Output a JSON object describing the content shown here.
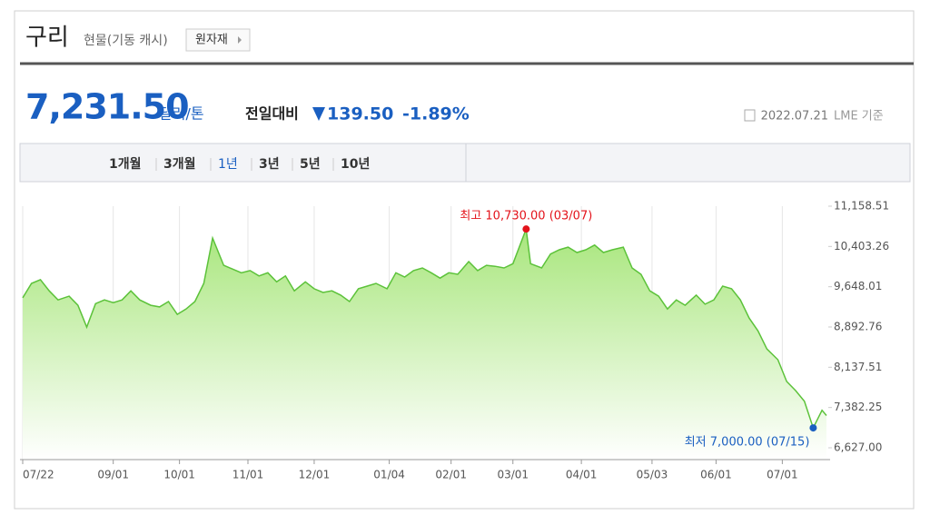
{
  "header": {
    "title": "구리",
    "subtitle": "현물(기동 캐시)",
    "button": "원자재"
  },
  "quote": {
    "price": "7,231.50",
    "unit": "달러/톤",
    "change_label": "전일대비",
    "change": "139.50",
    "change_pct": "-1.89%",
    "date": "2022.07.21",
    "source": "LME 기준"
  },
  "tabs": {
    "items": [
      "1개월",
      "3개월",
      "1년",
      "3년",
      "5년",
      "10년"
    ],
    "selected": 2
  },
  "chart_data": {
    "type": "area",
    "x": [
      0,
      4,
      8,
      12,
      16,
      21,
      25,
      29,
      33,
      37,
      41,
      45,
      49,
      53,
      58,
      62,
      66,
      70,
      74,
      78,
      82,
      86,
      91,
      95,
      99,
      103,
      107,
      111,
      115,
      119,
      123,
      128,
      132,
      136,
      140,
      144,
      148,
      152,
      156,
      160,
      165,
      169,
      173,
      177,
      181,
      185,
      189,
      193,
      197,
      202,
      206,
      210,
      214,
      218,
      222,
      228,
      230,
      235,
      239,
      243,
      247,
      251,
      255,
      259,
      263,
      267,
      272,
      276,
      280,
      284,
      288,
      292,
      296,
      300,
      305,
      309,
      313,
      317,
      321,
      325,
      329,
      333,
      337,
      342,
      346,
      350,
      354,
      358,
      362,
      364
    ],
    "values": [
      9440,
      9710,
      9780,
      9570,
      9400,
      9470,
      9300,
      8890,
      9330,
      9400,
      9350,
      9400,
      9570,
      9400,
      9300,
      9270,
      9370,
      9130,
      9230,
      9370,
      9710,
      10560,
      10050,
      9980,
      9910,
      9950,
      9850,
      9910,
      9740,
      9850,
      9570,
      9740,
      9610,
      9540,
      9570,
      9490,
      9370,
      9610,
      9660,
      9710,
      9610,
      9910,
      9830,
      9950,
      10000,
      9910,
      9810,
      9910,
      9880,
      10120,
      9950,
      10050,
      10030,
      10000,
      10080,
      10730,
      10080,
      10000,
      10260,
      10340,
      10390,
      10290,
      10340,
      10430,
      10290,
      10340,
      10390,
      10000,
      9880,
      9570,
      9470,
      9230,
      9400,
      9300,
      9490,
      9320,
      9400,
      9660,
      9610,
      9400,
      9060,
      8820,
      8480,
      8280,
      7870,
      7700,
      7500,
      7000,
      7330,
      7231.5
    ],
    "line_color": "#5cc23a",
    "fill_color": "#a8e67c",
    "xlim": [
      0,
      364
    ],
    "xticks": [
      {
        "value": 0,
        "label": "07/22"
      },
      {
        "value": 41,
        "label": "09/01"
      },
      {
        "value": 71,
        "label": "10/01"
      },
      {
        "value": 102,
        "label": "11/01"
      },
      {
        "value": 132,
        "label": "12/01"
      },
      {
        "value": 166,
        "label": "01/04"
      },
      {
        "value": 194,
        "label": "02/01"
      },
      {
        "value": 222,
        "label": "03/01"
      },
      {
        "value": 253,
        "label": "04/01"
      },
      {
        "value": 285,
        "label": "05/03"
      },
      {
        "value": 314,
        "label": "06/01"
      },
      {
        "value": 344,
        "label": "07/01"
      }
    ],
    "ylim": [
      6627,
      11158.51
    ],
    "yticks": [
      {
        "value": 11158.51,
        "label": "11,158.51"
      },
      {
        "value": 10403.26,
        "label": "10,403.26"
      },
      {
        "value": 9648.01,
        "label": "9,648.01"
      },
      {
        "value": 8892.76,
        "label": "8,892.76"
      },
      {
        "value": 8137.51,
        "label": "8,137.51"
      },
      {
        "value": 7382.25,
        "label": "7,382.25"
      },
      {
        "value": 6627,
        "label": "6,627.00"
      }
    ],
    "annotations": [
      {
        "text": "최고 10,730.00 (03/07)",
        "marker": "max",
        "color": "#e3131b"
      },
      {
        "text": "최저 7,000.00 (07/15)",
        "marker": "min",
        "color": "#1a5fc1"
      }
    ]
  }
}
